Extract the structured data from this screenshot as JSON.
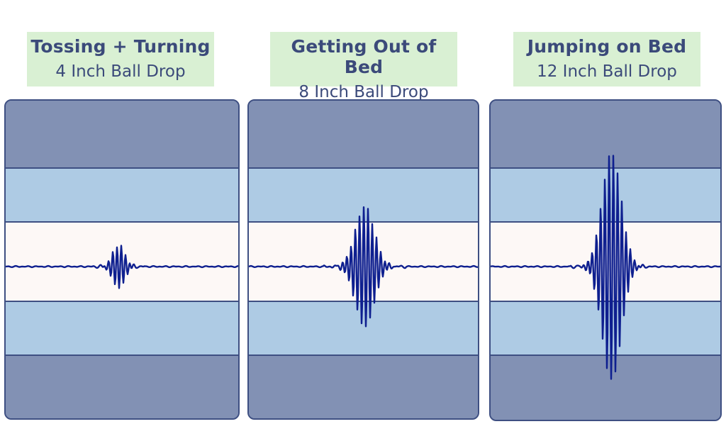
{
  "colors": {
    "label_bg": "#d9f0d3",
    "label_text": "#3b4a7a",
    "outer_layer": "#8291b4",
    "middle_layer": "#aecbe4",
    "center_layer": "#fdf8f6",
    "border": "#3e4f82",
    "waveform": "#0e1f8f"
  },
  "panels": [
    {
      "title": "Tossing + Turning",
      "subtitle": "4 Inch Ball Drop",
      "peak_amplitude": 0.18
    },
    {
      "title": "Getting Out of Bed",
      "subtitle": "8 Inch Ball Drop",
      "peak_amplitude": 0.5
    },
    {
      "title": "Jumping on Bed",
      "subtitle": "12 Inch Ball Drop",
      "peak_amplitude": 0.95
    }
  ]
}
